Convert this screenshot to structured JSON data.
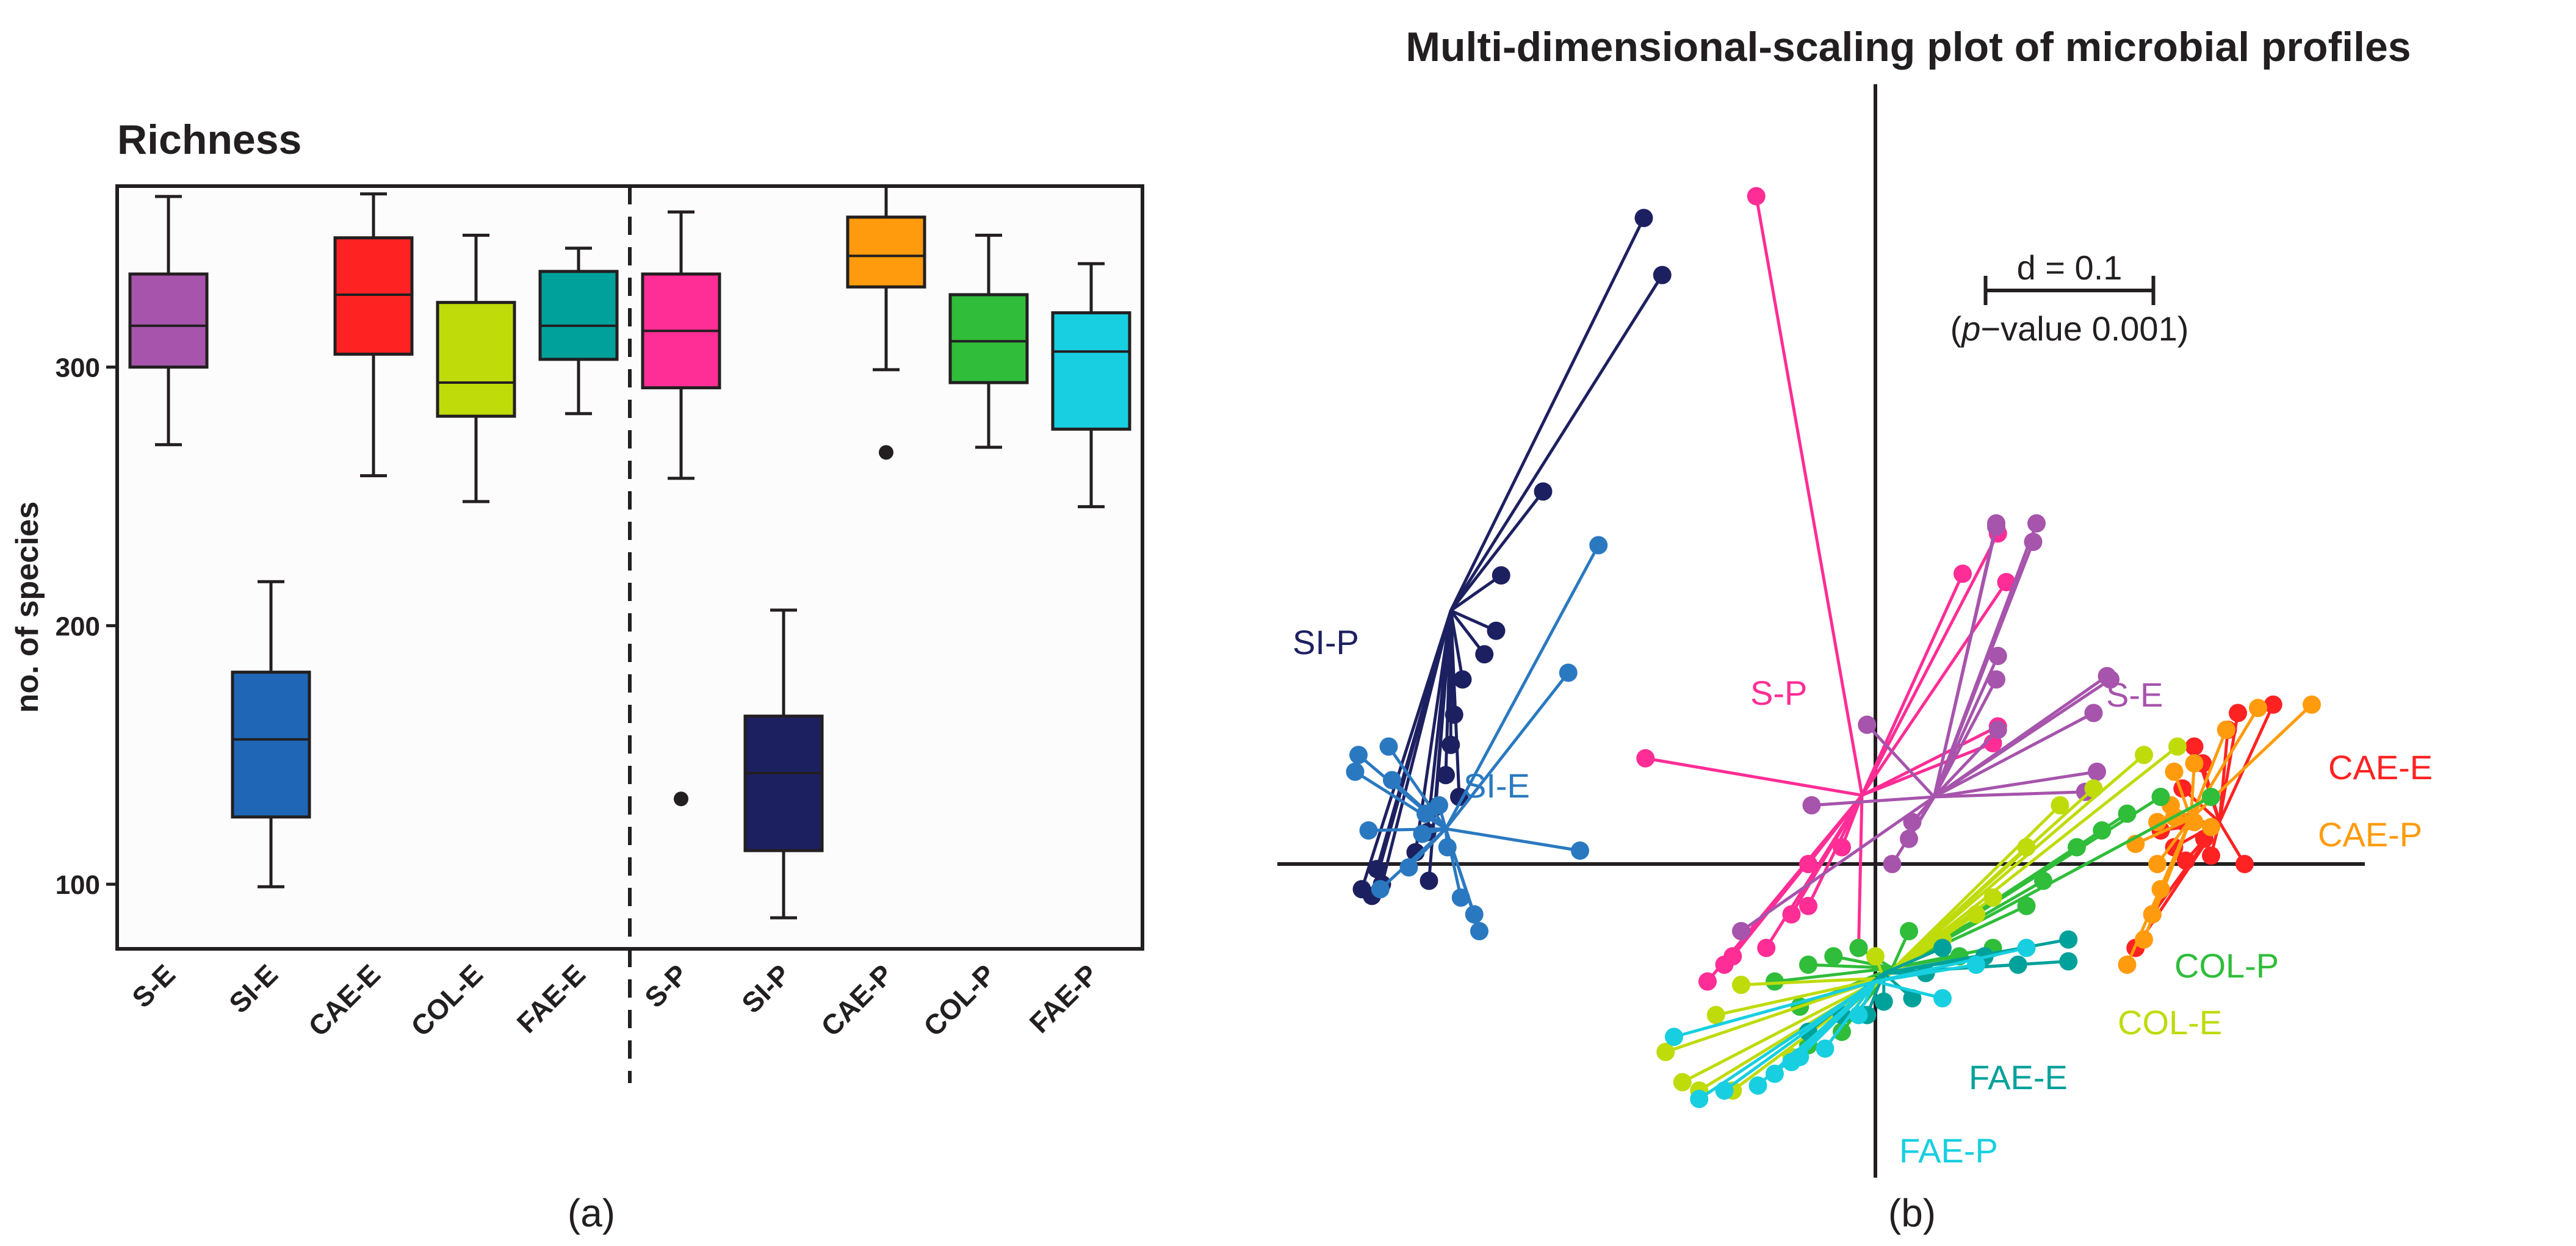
{
  "panels": {
    "a_label": "(a)",
    "b_label": "(b)"
  },
  "chart_data": [
    {
      "type": "box",
      "title": "Richness",
      "ylabel": "no. of species",
      "xlabel": "",
      "ylim": [
        75,
        370
      ],
      "yticks": [
        100,
        200,
        300
      ],
      "grid": false,
      "divider_after_category": "FAE-E",
      "categories": [
        "S-E",
        "SI-E",
        "CAE-E",
        "COL-E",
        "FAE-E",
        "S-P",
        "SI-P",
        "CAE-P",
        "COL-P",
        "FAE-P"
      ],
      "boxes": [
        {
          "category": "S-E",
          "color": "#A654AC",
          "min": 270,
          "q1": 300,
          "median": 316,
          "q3": 336,
          "max": 366,
          "outliers": []
        },
        {
          "category": "SI-E",
          "color": "#1F67B6",
          "min": 99,
          "q1": 126,
          "median": 156,
          "q3": 182,
          "max": 217,
          "outliers": []
        },
        {
          "category": "CAE-E",
          "color": "#FF2222",
          "min": 258,
          "q1": 305,
          "median": 328,
          "q3": 350,
          "max": 367,
          "outliers": []
        },
        {
          "category": "COL-E",
          "color": "#BFDB0A",
          "min": 248,
          "q1": 281,
          "median": 294,
          "q3": 325,
          "max": 351,
          "outliers": []
        },
        {
          "category": "FAE-E",
          "color": "#00A19A",
          "min": 282,
          "q1": 303,
          "median": 316,
          "q3": 337,
          "max": 346,
          "outliers": []
        },
        {
          "category": "S-P",
          "color": "#FF2D95",
          "min": 257,
          "q1": 292,
          "median": 314,
          "q3": 336,
          "max": 360,
          "outliers": [
            133
          ]
        },
        {
          "category": "SI-P",
          "color": "#1D2060",
          "min": 87,
          "q1": 113,
          "median": 143,
          "q3": 165,
          "max": 206,
          "outliers": []
        },
        {
          "category": "CAE-P",
          "color": "#FF9B0C",
          "min": 299,
          "q1": 331,
          "median": 343,
          "q3": 358,
          "max": 370,
          "outliers": [
            267
          ]
        },
        {
          "category": "COL-P",
          "color": "#2FBD3A",
          "min": 269,
          "q1": 294,
          "median": 310,
          "q3": 328,
          "max": 351,
          "outliers": []
        },
        {
          "category": "FAE-P",
          "color": "#17CFE0",
          "min": 246,
          "q1": 276,
          "median": 306,
          "q3": 321,
          "max": 340,
          "outliers": []
        }
      ]
    },
    {
      "type": "scatter",
      "subtype": "ordination-spider",
      "title": "Multi-dimensional-scaling plot of microbial profiles",
      "xlabel": "",
      "ylabel": "",
      "xlim": [
        -0.35,
        0.28
      ],
      "ylim": [
        -0.2,
        0.42
      ],
      "axes_cross_at": [
        0,
        0
      ],
      "grid": false,
      "scale_bar": {
        "label": "d = 0.1",
        "length": 0.1,
        "note_prefix": "(",
        "note_italic": "p",
        "note_suffix": "−value 0.001)"
      },
      "groups": [
        {
          "name": "SI-P",
          "color": "#1D2060",
          "centroid": [
            -0.253,
            0.151
          ],
          "points": [
            [
              -0.138,
              0.385
            ],
            [
              -0.127,
              0.351
            ],
            [
              -0.198,
              0.222
            ],
            [
              -0.223,
              0.172
            ],
            [
              -0.226,
              0.139
            ],
            [
              -0.233,
              0.125
            ],
            [
              -0.246,
              0.11
            ],
            [
              -0.251,
              0.089
            ],
            [
              -0.253,
              0.071
            ],
            [
              -0.256,
              0.053
            ],
            [
              -0.262,
              0.034
            ],
            [
              -0.267,
              0.019
            ],
            [
              -0.274,
              0.007
            ],
            [
              -0.297,
              -0.003
            ],
            [
              -0.306,
              -0.015
            ],
            [
              -0.3,
              -0.019
            ],
            [
              -0.294,
              -0.012
            ],
            [
              -0.266,
              -0.01
            ],
            [
              -0.248,
              0.04
            ]
          ]
        },
        {
          "name": "SI-E",
          "color": "#2A79C0",
          "centroid": [
            -0.256,
            0.021
          ],
          "points": [
            [
              -0.165,
              0.19
            ],
            [
              -0.183,
              0.114
            ],
            [
              -0.176,
              0.008
            ],
            [
              -0.308,
              0.065
            ],
            [
              -0.31,
              0.055
            ],
            [
              -0.29,
              0.07
            ],
            [
              -0.288,
              0.05
            ],
            [
              -0.302,
              0.02
            ],
            [
              -0.26,
              0.035
            ],
            [
              -0.268,
              0.03
            ],
            [
              -0.255,
              0.01
            ],
            [
              -0.295,
              -0.015
            ],
            [
              -0.278,
              -0.002
            ],
            [
              -0.247,
              -0.02
            ],
            [
              -0.239,
              -0.03
            ],
            [
              -0.236,
              -0.04
            ],
            [
              -0.27,
              0.018
            ]
          ]
        },
        {
          "name": "S-P",
          "color": "#FF2D95",
          "centroid": [
            -0.008,
            0.041
          ],
          "points": [
            [
              -0.071,
              0.398
            ],
            [
              -0.137,
              0.063
            ],
            [
              0.052,
              0.173
            ],
            [
              0.073,
              0.197
            ],
            [
              0.078,
              0.168
            ],
            [
              0.073,
              0.082
            ],
            [
              0.07,
              0.072
            ],
            [
              -0.01,
              -0.05
            ],
            [
              -0.05,
              -0.03
            ],
            [
              -0.065,
              -0.05
            ],
            [
              -0.1,
              -0.07
            ],
            [
              -0.09,
              -0.06
            ],
            [
              -0.085,
              -0.055
            ],
            [
              -0.04,
              -0.025
            ],
            [
              -0.04,
              0.0
            ],
            [
              -0.02,
              0.01
            ]
          ]
        },
        {
          "name": "S-E",
          "color": "#A654AC",
          "centroid": [
            0.035,
            0.04
          ],
          "points": [
            [
              0.072,
              0.203
            ],
            [
              0.072,
              0.201
            ],
            [
              0.096,
              0.203
            ],
            [
              0.094,
              0.192
            ],
            [
              0.073,
              0.124
            ],
            [
              0.072,
              0.11
            ],
            [
              0.138,
              0.112
            ],
            [
              0.13,
              0.09
            ],
            [
              0.073,
              0.08
            ],
            [
              0.022,
              0.025
            ],
            [
              0.02,
              0.015
            ],
            [
              0.01,
              0.0
            ],
            [
              -0.038,
              0.035
            ],
            [
              -0.005,
              0.083
            ],
            [
              0.132,
              0.055
            ],
            [
              0.125,
              0.043
            ],
            [
              -0.08,
              -0.04
            ],
            [
              0.14,
              0.11
            ]
          ]
        },
        {
          "name": "CAE-E",
          "color": "#FF2222",
          "centroid": [
            0.205,
            0.025
          ],
          "points": [
            [
              0.237,
              0.095
            ],
            [
              0.216,
              0.09
            ],
            [
              0.21,
              0.08
            ],
            [
              0.19,
              0.07
            ],
            [
              0.195,
              0.06
            ],
            [
              0.183,
              0.045
            ],
            [
              0.184,
              0.025
            ],
            [
              0.196,
              0.015
            ],
            [
              0.22,
              0.0
            ],
            [
              0.2,
              0.005
            ],
            [
              0.17,
              0.02
            ],
            [
              0.178,
              0.01
            ],
            [
              0.185,
              0.002
            ],
            [
              0.165,
              -0.03
            ],
            [
              0.155,
              -0.05
            ]
          ]
        },
        {
          "name": "CAE-P",
          "color": "#FF9B0C",
          "centroid": [
            0.188,
            0.027
          ],
          "points": [
            [
              0.26,
              0.095
            ],
            [
              0.228,
              0.093
            ],
            [
              0.209,
              0.08
            ],
            [
              0.19,
              0.06
            ],
            [
              0.178,
              0.055
            ],
            [
              0.176,
              0.035
            ],
            [
              0.178,
              0.028
            ],
            [
              0.19,
              0.025
            ],
            [
              0.2,
              0.022
            ],
            [
              0.168,
              0.025
            ],
            [
              0.155,
              0.012
            ],
            [
              0.168,
              0.0
            ],
            [
              0.17,
              -0.015
            ],
            [
              0.165,
              -0.03
            ],
            [
              0.16,
              -0.045
            ],
            [
              0.15,
              -0.06
            ]
          ]
        },
        {
          "name": "COL-P",
          "color": "#2FBD3A",
          "centroid": [
            0.01,
            -0.062
          ],
          "points": [
            [
              0.2,
              0.04
            ],
            [
              0.17,
              0.04
            ],
            [
              0.15,
              0.03
            ],
            [
              0.135,
              0.02
            ],
            [
              0.12,
              0.01
            ],
            [
              0.1,
              -0.01
            ],
            [
              0.09,
              -0.025
            ],
            [
              0.07,
              -0.05
            ],
            [
              0.05,
              -0.055
            ],
            [
              0.02,
              -0.04
            ],
            [
              -0.01,
              -0.05
            ],
            [
              -0.025,
              -0.055
            ],
            [
              -0.04,
              -0.06
            ],
            [
              -0.06,
              -0.07
            ],
            [
              -0.045,
              -0.085
            ],
            [
              -0.02,
              -0.1
            ],
            [
              -0.04,
              -0.108
            ]
          ]
        },
        {
          "name": "COL-E",
          "color": "#BFDB0A",
          "centroid": [
            0.005,
            -0.068
          ],
          "points": [
            [
              0.18,
              0.07
            ],
            [
              0.16,
              0.065
            ],
            [
              0.13,
              0.045
            ],
            [
              0.11,
              0.035
            ],
            [
              0.09,
              0.01
            ],
            [
              0.07,
              -0.02
            ],
            [
              0.06,
              -0.03
            ],
            [
              0.04,
              -0.045
            ],
            [
              0.0,
              -0.055
            ],
            [
              -0.08,
              -0.072
            ],
            [
              -0.095,
              -0.09
            ],
            [
              -0.125,
              -0.112
            ],
            [
              -0.115,
              -0.13
            ],
            [
              -0.105,
              -0.135
            ],
            [
              -0.085,
              -0.135
            ],
            [
              -0.05,
              -0.115
            ]
          ]
        },
        {
          "name": "FAE-E",
          "color": "#00A19A",
          "centroid": [
            0.005,
            -0.065
          ],
          "points": [
            [
              0.115,
              -0.045
            ],
            [
              0.115,
              -0.058
            ],
            [
              0.085,
              -0.06
            ],
            [
              0.065,
              -0.055
            ],
            [
              0.04,
              -0.05
            ],
            [
              0.03,
              -0.065
            ],
            [
              0.022,
              -0.08
            ],
            [
              0.005,
              -0.082
            ],
            [
              -0.005,
              -0.09
            ],
            [
              -0.02,
              -0.09
            ],
            [
              -0.04,
              -0.1
            ]
          ]
        },
        {
          "name": "FAE-P",
          "color": "#17CFE0",
          "centroid": [
            0.0,
            -0.07
          ],
          "points": [
            [
              0.09,
              -0.05
            ],
            [
              0.06,
              -0.06
            ],
            [
              0.04,
              -0.08
            ],
            [
              -0.01,
              -0.09
            ],
            [
              -0.03,
              -0.11
            ],
            [
              -0.045,
              -0.115
            ],
            [
              -0.05,
              -0.118
            ],
            [
              -0.06,
              -0.125
            ],
            [
              -0.07,
              -0.132
            ],
            [
              -0.09,
              -0.135
            ],
            [
              -0.105,
              -0.14
            ],
            [
              -0.12,
              -0.103
            ]
          ]
        }
      ]
    }
  ]
}
